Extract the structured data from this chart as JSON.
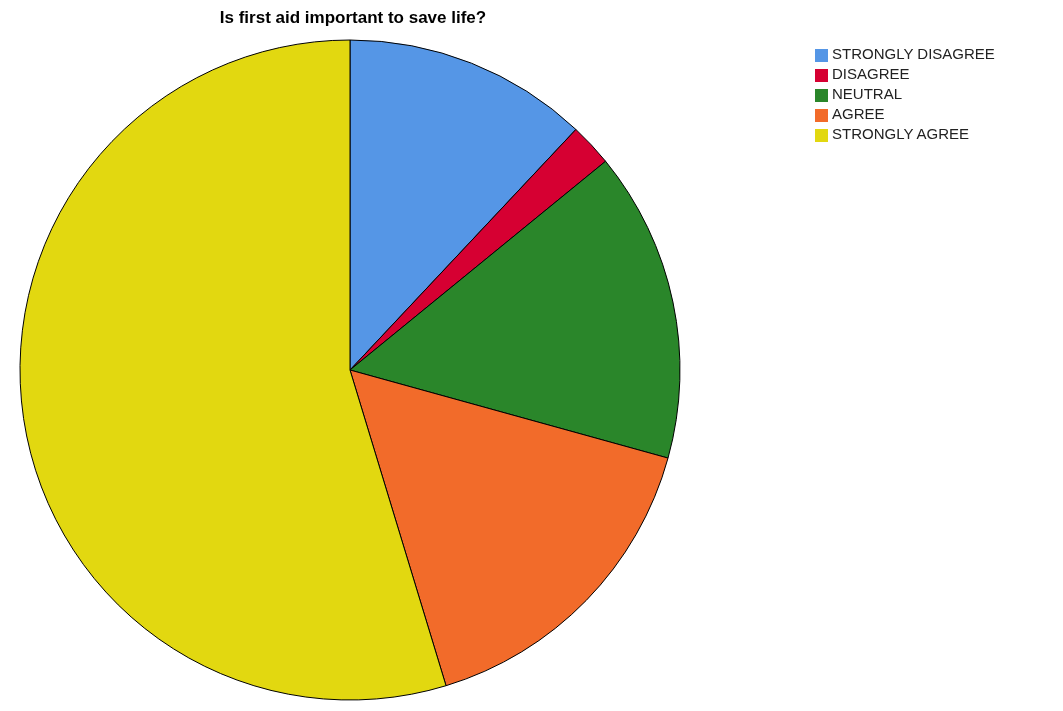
{
  "chart_data": {
    "type": "pie",
    "title": "Is first aid important to save life?",
    "categories": [
      "STRONGLY DISAGREE",
      "DISAGREE",
      "NEUTRAL",
      "AGREE",
      "STRONGLY AGREE"
    ],
    "values": [
      12.0,
      2.1,
      15.2,
      16.0,
      54.7
    ],
    "colors": [
      "#5596e6",
      "#d60032",
      "#2a862a",
      "#f26b2a",
      "#e2d810"
    ],
    "legend": "top right"
  }
}
